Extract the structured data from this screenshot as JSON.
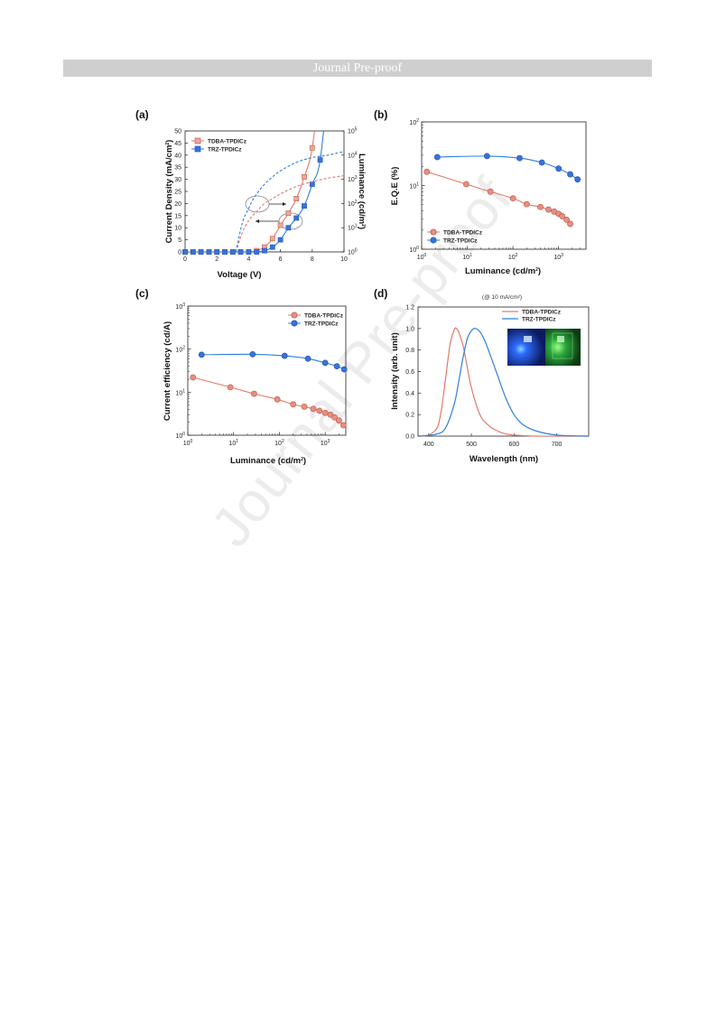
{
  "header": {
    "text": "Journal Pre-proof"
  },
  "watermark": {
    "text": "Journal Pre-proof"
  },
  "colors": {
    "tdba": "#e07a6b",
    "trz": "#2e7fe0",
    "tdba_marker": "#d66f5e",
    "trz_marker": "#3a72d9"
  },
  "panels": {
    "a": {
      "label": "(a)"
    },
    "b": {
      "label": "(b)"
    },
    "c": {
      "label": "(c)"
    },
    "d": {
      "label": "(d)",
      "note": "(@ 10 mA/cm²)",
      "inset": "device-emission-photo"
    }
  },
  "chart_data": [
    {
      "id": "a",
      "type": "line",
      "xlabel": "Voltage (V)",
      "ylabel": "Current Density (mA/cm²)",
      "y2label": "Luminance (cd/m²)",
      "xlim": [
        0,
        10
      ],
      "ylim": [
        0,
        50
      ],
      "y2lim_log10": [
        0,
        5
      ],
      "y2scale": "log",
      "xticks": [
        0,
        2,
        4,
        6,
        8,
        10
      ],
      "yticks": [
        0,
        5,
        10,
        15,
        20,
        25,
        30,
        35,
        40,
        45,
        50
      ],
      "y2ticks": [
        0,
        1,
        2,
        3,
        4,
        5
      ],
      "legend_position": "top-left",
      "series": [
        {
          "name": "TDBA-TPDICz",
          "kind": "current-density",
          "x": [
            0,
            0.5,
            1,
            1.5,
            2,
            2.5,
            3,
            3.5,
            4,
            4.5,
            5,
            5.5,
            6,
            6.5,
            7,
            7.5,
            8
          ],
          "y": [
            0,
            0,
            0,
            0,
            0,
            0,
            0,
            0,
            0,
            0.5,
            2,
            5.5,
            11,
            16,
            22,
            31,
            43
          ]
        },
        {
          "name": "TRZ-TPDICz",
          "kind": "current-density",
          "x": [
            0,
            0.5,
            1,
            1.5,
            2,
            2.5,
            3,
            3.5,
            4,
            4.5,
            5,
            5.5,
            6,
            6.5,
            7,
            7.5,
            8,
            8.5
          ],
          "y": [
            0,
            0,
            0,
            0,
            0,
            0,
            0,
            0,
            0,
            0,
            0.5,
            2,
            5,
            10,
            14,
            19,
            28,
            38
          ]
        },
        {
          "name": "TDBA-TPDICz",
          "kind": "luminance",
          "x": [
            3.2,
            3.6,
            4.0,
            4.4,
            5.0,
            5.5,
            6.0,
            7.0,
            8.0,
            9.0,
            10.0
          ],
          "y_log10": [
            0,
            0.8,
            1.3,
            1.6,
            2.0,
            2.2,
            2.4,
            2.7,
            2.9,
            3.05,
            3.15
          ]
        },
        {
          "name": "TRZ-TPDICz",
          "kind": "luminance",
          "x": [
            3.2,
            3.6,
            4.0,
            4.4,
            5.0,
            5.5,
            6.0,
            7.0,
            8.0,
            9.0,
            10.0
          ],
          "y_log10": [
            0,
            1.2,
            1.8,
            2.3,
            2.8,
            3.1,
            3.35,
            3.7,
            3.9,
            4.0,
            4.15
          ]
        }
      ]
    },
    {
      "id": "b",
      "type": "scatter",
      "xlabel": "Luminance (cd/m²)",
      "ylabel": "E.Q.E (%)",
      "xscale": "log",
      "yscale": "log",
      "xlim_log10": [
        0,
        3.6
      ],
      "ylim_log10": [
        0,
        2
      ],
      "xticks_log10": [
        0,
        1,
        2,
        3
      ],
      "yticks_log10": [
        0,
        1,
        2
      ],
      "legend_position": "bottom-left",
      "series": [
        {
          "name": "TDBA-TPDICz",
          "x": [
            1.3,
            9.5,
            32,
            100,
            200,
            400,
            600,
            800,
            1000,
            1200,
            1500,
            1800
          ],
          "y": [
            16.5,
            10.5,
            8,
            6.3,
            5.1,
            4.6,
            4.2,
            3.9,
            3.6,
            3.3,
            2.9,
            2.5
          ]
        },
        {
          "name": "TRZ-TPDICz",
          "x": [
            2.2,
            27,
            140,
            430,
            1000,
            1800,
            2600
          ],
          "y": [
            28,
            29,
            27,
            23,
            18.5,
            15,
            12.5
          ]
        }
      ]
    },
    {
      "id": "c",
      "type": "scatter",
      "xlabel": "Luminance (cd/m²)",
      "ylabel": "Current efficiency (cd/A)",
      "xscale": "log",
      "yscale": "log",
      "xlim_log10": [
        0,
        3.45
      ],
      "ylim_log10": [
        0,
        3
      ],
      "xticks_log10": [
        0,
        1,
        2,
        3
      ],
      "yticks_log10": [
        0,
        1,
        2,
        3
      ],
      "legend_position": "top-right",
      "series": [
        {
          "name": "TDBA-TPDICz",
          "x": [
            1.3,
            8.5,
            28,
            90,
            200,
            350,
            550,
            750,
            1000,
            1300,
            1600,
            2000,
            2500
          ],
          "y": [
            22,
            13,
            9.2,
            6.8,
            5.2,
            4.6,
            4.1,
            3.7,
            3.3,
            3.0,
            2.6,
            2.2,
            1.7
          ]
        },
        {
          "name": "TRZ-TPDICz",
          "x": [
            2,
            26,
            130,
            420,
            1000,
            1800,
            2600
          ],
          "y": [
            74,
            76,
            70,
            60,
            48,
            40,
            34
          ]
        }
      ]
    },
    {
      "id": "d",
      "type": "line",
      "xlabel": "Wavelength (nm)",
      "ylabel": "Intensity (arb. unit)",
      "xlim": [
        375,
        775
      ],
      "ylim": [
        0,
        1.2
      ],
      "xticks": [
        400,
        500,
        600,
        700
      ],
      "yticks": [
        0.0,
        0.2,
        0.4,
        0.6,
        0.8,
        1.0,
        1.2
      ],
      "legend_position": "top-right",
      "series": [
        {
          "name": "TDBA-TPDICz",
          "x": [
            380,
            400,
            420,
            430,
            440,
            450,
            460,
            465,
            470,
            480,
            490,
            500,
            520,
            540,
            560,
            580,
            600,
            650,
            700,
            775
          ],
          "y": [
            0,
            0.01,
            0.08,
            0.25,
            0.55,
            0.85,
            0.99,
            1.0,
            0.97,
            0.85,
            0.65,
            0.45,
            0.2,
            0.1,
            0.05,
            0.02,
            0.01,
            0,
            0,
            0
          ]
        },
        {
          "name": "TRZ-TPDICz",
          "x": [
            380,
            420,
            440,
            460,
            470,
            480,
            490,
            500,
            510,
            520,
            530,
            540,
            560,
            580,
            600,
            620,
            650,
            700,
            775
          ],
          "y": [
            0,
            0.02,
            0.08,
            0.3,
            0.5,
            0.72,
            0.9,
            0.98,
            1.0,
            0.97,
            0.9,
            0.8,
            0.58,
            0.36,
            0.2,
            0.11,
            0.05,
            0.01,
            0
          ]
        }
      ]
    }
  ]
}
